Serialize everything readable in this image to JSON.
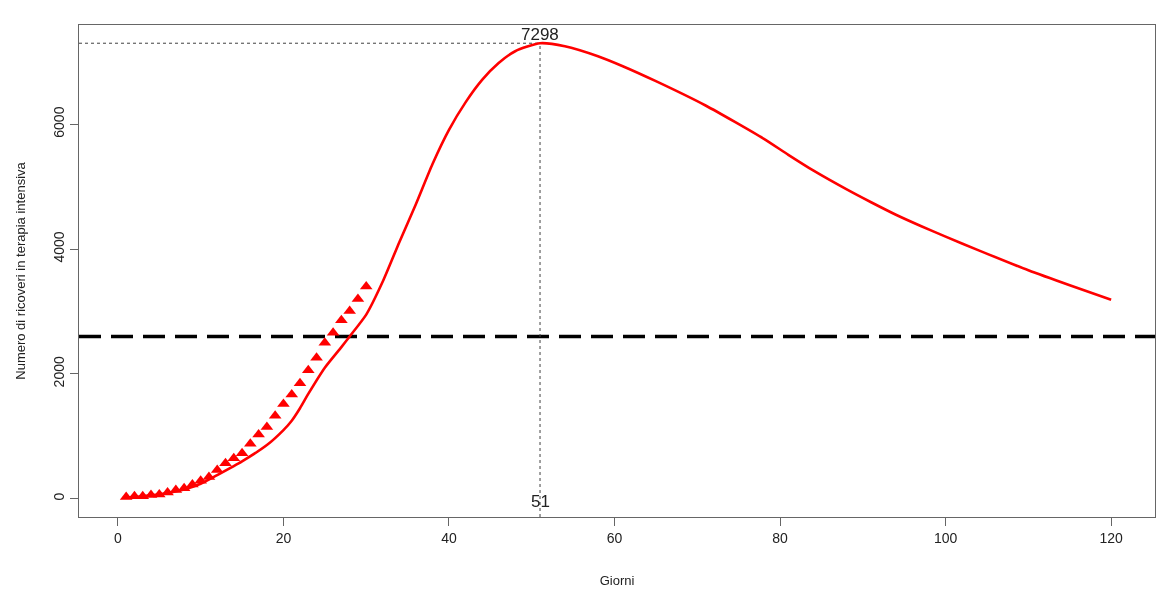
{
  "chart_data": {
    "type": "line",
    "xlabel": "Giorni",
    "ylabel": "Numero di ricoveri in terapia intensiva",
    "xlim": [
      -4.7,
      125.3
    ],
    "ylim": [
      -292,
      7590
    ],
    "xticks": [
      0,
      20,
      40,
      60,
      80,
      100,
      120
    ],
    "yticks": [
      0,
      2000,
      4000,
      6000
    ],
    "grid": false,
    "series": [
      {
        "color": "#ff0000",
        "line_style": "solid",
        "x": [
          1,
          3,
          5,
          8,
          10,
          12,
          15,
          18,
          20,
          21,
          22,
          23,
          25,
          27,
          28,
          30,
          32,
          34,
          36,
          38,
          40,
          42,
          44,
          46,
          48,
          51,
          54,
          58,
          61,
          65,
          71,
          78,
          81,
          84,
          88,
          91,
          94,
          97,
          100,
          104,
          110,
          115,
          120
        ],
        "values": [
          20,
          40,
          70,
          150,
          240,
          380,
          600,
          860,
          1100,
          1250,
          1450,
          1680,
          2100,
          2430,
          2600,
          2950,
          3480,
          4110,
          4720,
          5360,
          5910,
          6350,
          6710,
          6980,
          7170,
          7298,
          7250,
          7090,
          6930,
          6690,
          6300,
          5770,
          5510,
          5260,
          4960,
          4750,
          4550,
          4370,
          4200,
          3980,
          3660,
          3420,
          3190
        ]
      },
      {
        "type": "scatter",
        "color": "#ff0000",
        "marker": "triangle",
        "x": [
          1,
          2,
          3,
          4,
          5,
          6,
          7,
          8,
          9,
          10,
          11,
          12,
          13,
          14,
          15,
          16,
          17,
          18,
          19,
          20,
          21,
          22,
          23,
          24,
          25,
          26,
          27,
          28,
          29,
          30
        ],
        "values": [
          30,
          40,
          40,
          60,
          70,
          100,
          140,
          170,
          230,
          290,
          350,
          460,
          570,
          650,
          730,
          880,
          1030,
          1150,
          1330,
          1520,
          1670,
          1850,
          2060,
          2260,
          2500,
          2660,
          2860,
          3010,
          3200,
          3400
        ]
      }
    ],
    "ref_lines": [
      {
        "axis": "y",
        "value": 2600,
        "color": "#000000",
        "line_style": "dashed"
      },
      {
        "axis": "x",
        "value": 51,
        "label": "51",
        "color": "#404040",
        "line_style": "dotted"
      },
      {
        "axis": "y",
        "value": 7298,
        "label": "7298",
        "color": "#404040",
        "line_style": "dotted"
      }
    ]
  }
}
